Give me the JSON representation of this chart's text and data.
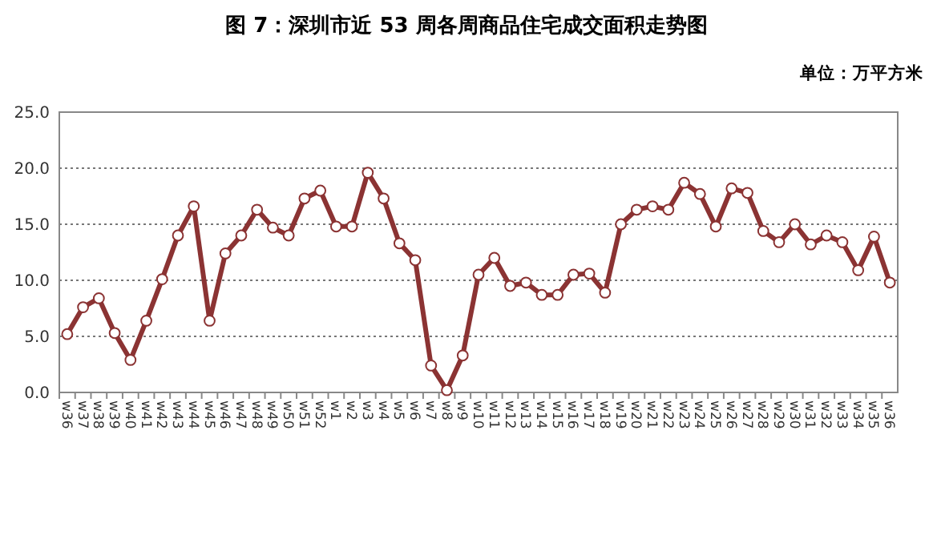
{
  "chart_data": {
    "type": "line",
    "title": "图 7：深圳市近 53 周各周商品住宅成交面积走势图",
    "subtitle": "单位：万平方米",
    "categories": [
      "w36",
      "w37",
      "w38",
      "w39",
      "w40",
      "w41",
      "w42",
      "w43",
      "w44",
      "w45",
      "w46",
      "w47",
      "w48",
      "w49",
      "w50",
      "w51",
      "w52",
      "w1",
      "w2",
      "w3",
      "w4",
      "w5",
      "w6",
      "w7",
      "w8",
      "w9",
      "w10",
      "w11",
      "w12",
      "w13",
      "w14",
      "w15",
      "w16",
      "w17",
      "w18",
      "w19",
      "w20",
      "w21",
      "w22",
      "w23",
      "w24",
      "w25",
      "w26",
      "w27",
      "w28",
      "w29",
      "w30",
      "w31",
      "w32",
      "w33",
      "w34",
      "w35",
      "w36"
    ],
    "series": [
      {
        "color": "#8b3333",
        "values": [
          5.2,
          7.6,
          8.4,
          5.3,
          2.9,
          6.4,
          10.1,
          14.0,
          16.6,
          6.4,
          12.4,
          14.0,
          16.3,
          14.7,
          14.0,
          17.3,
          18.0,
          14.8,
          14.8,
          19.6,
          17.3,
          13.3,
          11.8,
          2.4,
          0.2,
          3.3,
          10.5,
          12.0,
          9.5,
          9.8,
          8.7,
          8.7,
          10.5,
          10.6,
          8.9,
          15.0,
          16.3,
          16.6,
          16.3,
          18.7,
          17.7,
          14.8,
          18.2,
          17.8,
          14.4,
          13.4,
          15.0,
          13.2,
          14.0,
          13.4,
          10.9,
          13.9,
          9.8
        ]
      }
    ],
    "ylim": [
      0,
      25
    ],
    "yticks": [
      {
        "value": 0,
        "label": "0.0"
      },
      {
        "value": 5,
        "label": "5.0"
      },
      {
        "value": 10,
        "label": "10.0"
      },
      {
        "value": 15,
        "label": "15.0"
      },
      {
        "value": 20,
        "label": "20.0"
      },
      {
        "value": 25,
        "label": "25.0"
      }
    ],
    "grid": "y",
    "marker": "circle",
    "line_style": "solid"
  }
}
